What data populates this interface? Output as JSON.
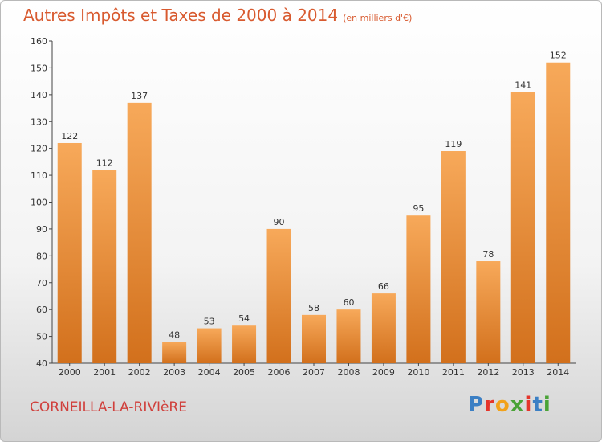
{
  "header": {
    "title": "Autres Impôts et Taxes de 2000 à 2014",
    "subtitle": "(en milliers d'€)"
  },
  "footer": {
    "commune": "CORNEILLA-LA-RIVIèRE",
    "logo": {
      "letters": [
        "P",
        "r",
        "o",
        "x",
        "i",
        "t",
        "i"
      ],
      "colors": [
        "#3b7fc4",
        "#e5352b",
        "#f2a21a",
        "#4aa337",
        "#e5352b",
        "#3b7fc4",
        "#4aa337"
      ]
    }
  },
  "colors": {
    "bar_light": "#f7a95a",
    "bar_dark": "#d2701c",
    "title": "#d85a2f"
  },
  "chart_data": {
    "type": "bar",
    "categories": [
      "2000",
      "2001",
      "2002",
      "2003",
      "2004",
      "2005",
      "2006",
      "2007",
      "2008",
      "2009",
      "2010",
      "2011",
      "2012",
      "2013",
      "2014"
    ],
    "values": [
      122,
      112,
      137,
      48,
      53,
      54,
      90,
      58,
      60,
      66,
      95,
      119,
      78,
      141,
      152
    ],
    "title": "Autres Impôts et Taxes de 2000 à 2014",
    "xlabel": "",
    "ylabel": "",
    "ylim": [
      40,
      160
    ],
    "yticks": [
      40,
      50,
      60,
      70,
      80,
      90,
      100,
      110,
      120,
      130,
      140,
      150,
      160
    ],
    "grid": false,
    "legend": "none"
  }
}
